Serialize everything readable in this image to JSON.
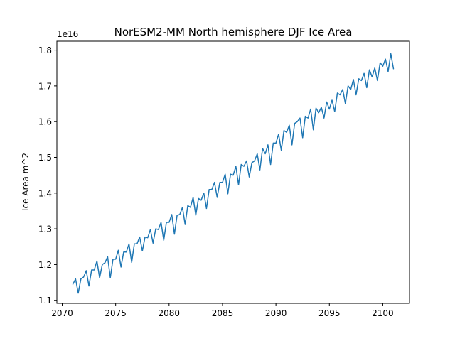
{
  "chart_data": {
    "type": "line",
    "title": "NorESM2-MM North hemisphere DJF Ice Area",
    "xlabel": "",
    "ylabel": "Ice Area m^2",
    "y_offset_label": "1e16",
    "y_scale": 1e+16,
    "xlim": [
      2069.5,
      2102.5
    ],
    "ylim": [
      1.0915,
      1.825
    ],
    "x_ticks": [
      2070,
      2075,
      2080,
      2085,
      2090,
      2095,
      2100
    ],
    "x_tick_labels": [
      "2070",
      "2075",
      "2080",
      "2085",
      "2090",
      "2095",
      "2100"
    ],
    "y_ticks": [
      1.1,
      1.2,
      1.3,
      1.4,
      1.5,
      1.6,
      1.7,
      1.8
    ],
    "y_tick_labels": [
      "1.1",
      "1.2",
      "1.3",
      "1.4",
      "1.5",
      "1.6",
      "1.7",
      "1.8"
    ],
    "grid": false,
    "series": [
      {
        "color": "#1f77b4",
        "x": [
          2071.0,
          2071.25,
          2071.5,
          2071.75,
          2072.0,
          2072.25,
          2072.5,
          2072.75,
          2073.0,
          2073.25,
          2073.5,
          2073.75,
          2074.0,
          2074.25,
          2074.5,
          2074.75,
          2075.0,
          2075.25,
          2075.5,
          2075.75,
          2076.0,
          2076.25,
          2076.5,
          2076.75,
          2077.0,
          2077.25,
          2077.5,
          2077.75,
          2078.0,
          2078.25,
          2078.5,
          2078.75,
          2079.0,
          2079.25,
          2079.5,
          2079.75,
          2080.0,
          2080.25,
          2080.5,
          2080.75,
          2081.0,
          2081.25,
          2081.5,
          2081.75,
          2082.0,
          2082.25,
          2082.5,
          2082.75,
          2083.0,
          2083.25,
          2083.5,
          2083.75,
          2084.0,
          2084.25,
          2084.5,
          2084.75,
          2085.0,
          2085.25,
          2085.5,
          2085.75,
          2086.0,
          2086.25,
          2086.5,
          2086.75,
          2087.0,
          2087.25,
          2087.5,
          2087.75,
          2088.0,
          2088.25,
          2088.5,
          2088.75,
          2089.0,
          2089.25,
          2089.5,
          2089.75,
          2090.0,
          2090.25,
          2090.5,
          2090.75,
          2091.0,
          2091.25,
          2091.5,
          2091.75,
          2092.0,
          2092.25,
          2092.5,
          2092.75,
          2093.0,
          2093.25,
          2093.5,
          2093.75,
          2094.0,
          2094.25,
          2094.5,
          2094.75,
          2095.0,
          2095.25,
          2095.5,
          2095.75,
          2096.0,
          2096.25,
          2096.5,
          2096.75,
          2097.0,
          2097.25,
          2097.5,
          2097.75,
          2098.0,
          2098.25,
          2098.5,
          2098.75,
          2099.0,
          2099.25,
          2099.5,
          2099.75,
          2100.0,
          2100.25,
          2100.5,
          2100.75,
          2101.0
        ],
        "values": [
          1.145,
          1.16,
          1.12,
          1.16,
          1.165,
          1.183,
          1.14,
          1.185,
          1.185,
          1.21,
          1.163,
          1.2,
          1.205,
          1.222,
          1.163,
          1.215,
          1.215,
          1.24,
          1.193,
          1.235,
          1.235,
          1.258,
          1.206,
          1.258,
          1.258,
          1.277,
          1.238,
          1.277,
          1.275,
          1.298,
          1.26,
          1.3,
          1.298,
          1.318,
          1.268,
          1.318,
          1.318,
          1.34,
          1.285,
          1.338,
          1.34,
          1.36,
          1.312,
          1.365,
          1.36,
          1.388,
          1.338,
          1.385,
          1.38,
          1.4,
          1.357,
          1.41,
          1.41,
          1.43,
          1.388,
          1.43,
          1.43,
          1.453,
          1.398,
          1.453,
          1.45,
          1.475,
          1.423,
          1.48,
          1.475,
          1.49,
          1.445,
          1.485,
          1.49,
          1.51,
          1.465,
          1.525,
          1.51,
          1.535,
          1.48,
          1.54,
          1.54,
          1.565,
          1.52,
          1.575,
          1.57,
          1.59,
          1.535,
          1.595,
          1.6,
          1.61,
          1.555,
          1.615,
          1.61,
          1.635,
          1.577,
          1.638,
          1.625,
          1.64,
          1.61,
          1.655,
          1.635,
          1.66,
          1.628,
          1.68,
          1.675,
          1.69,
          1.65,
          1.7,
          1.69,
          1.718,
          1.675,
          1.72,
          1.715,
          1.735,
          1.695,
          1.745,
          1.725,
          1.75,
          1.715,
          1.765,
          1.755,
          1.775,
          1.74,
          1.79,
          1.748
        ]
      }
    ]
  }
}
